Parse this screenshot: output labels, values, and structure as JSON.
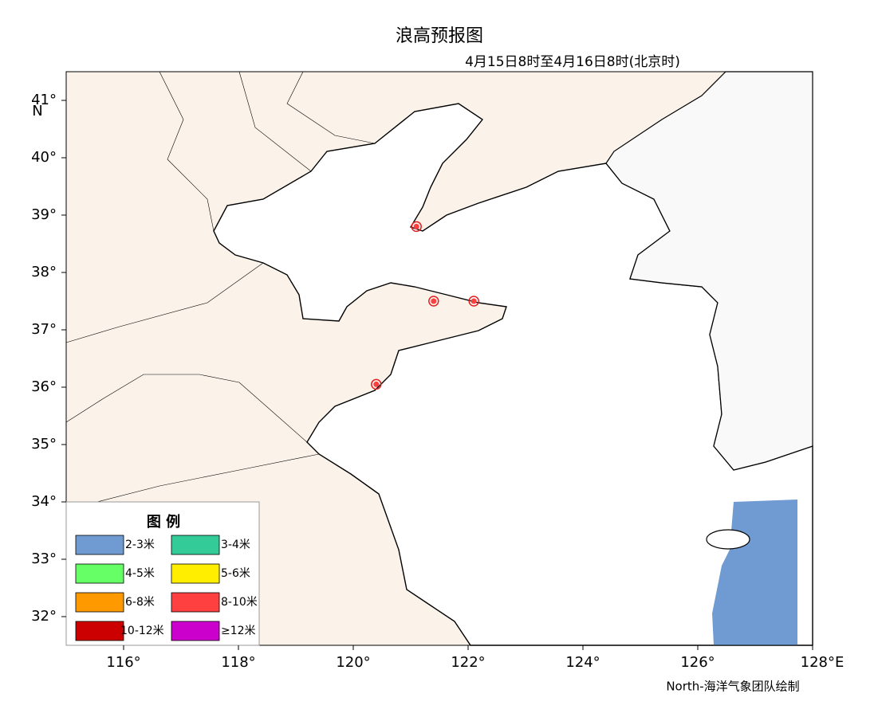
{
  "map": {
    "title": "浪高预报图",
    "subtitle": "4月15日8时至4月16日8时(北京时)",
    "extent": {
      "lon": [
        115,
        128
      ],
      "lat": [
        31.5,
        41.5
      ]
    },
    "xticks": [
      {
        "value": 116,
        "label": "116°"
      },
      {
        "value": 118,
        "label": "118°"
      },
      {
        "value": 120,
        "label": "120°"
      },
      {
        "value": 122,
        "label": "122°"
      },
      {
        "value": 124,
        "label": "124°"
      },
      {
        "value": 126,
        "label": "126°"
      },
      {
        "value": 128,
        "label": "128°E"
      }
    ],
    "yticks": [
      {
        "value": 32,
        "label": "32°"
      },
      {
        "value": 33,
        "label": "33°"
      },
      {
        "value": 34,
        "label": "34°"
      },
      {
        "value": 35,
        "label": "35°"
      },
      {
        "value": 36,
        "label": "36°"
      },
      {
        "value": 37,
        "label": "37°"
      },
      {
        "value": 38,
        "label": "38°"
      },
      {
        "value": 39,
        "label": "39°"
      },
      {
        "value": 40,
        "label": "40°"
      },
      {
        "value": 41,
        "label": "41°"
      }
    ],
    "lat_unit": "N",
    "stations": [
      {
        "lon": 121.1,
        "lat": 38.8
      },
      {
        "lon": 121.4,
        "lat": 37.5
      },
      {
        "lon": 122.1,
        "lat": 37.5
      },
      {
        "lon": 120.4,
        "lat": 36.05
      }
    ],
    "legend": {
      "title": "图 例",
      "items": [
        {
          "label": "2-3米",
          "color": "#6f9bd2"
        },
        {
          "label": "3-4米",
          "color": "#33cc99"
        },
        {
          "label": "4-5米",
          "color": "#66ff66"
        },
        {
          "label": "5-6米",
          "color": "#ffee00"
        },
        {
          "label": "6-8米",
          "color": "#ff9900"
        },
        {
          "label": "8-10米",
          "color": "#ff4040"
        },
        {
          "label": "10-12米",
          "color": "#cc0000"
        },
        {
          "label": "≥12米",
          "color": "#cc00cc"
        }
      ]
    },
    "credit": "North-海洋气象团队绘制"
  }
}
